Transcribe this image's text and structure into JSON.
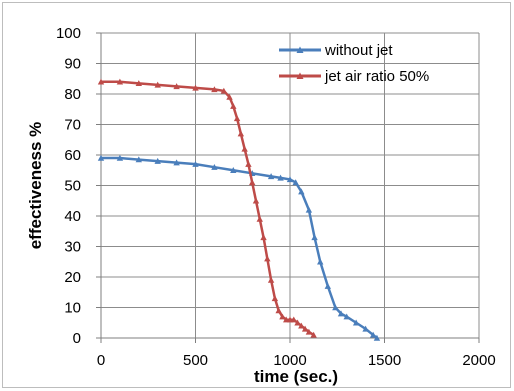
{
  "chart_data": {
    "type": "line",
    "xlabel": "time  (sec.)",
    "ylabel": "effectiveness %",
    "xlim": [
      0,
      2000
    ],
    "ylim": [
      0,
      100
    ],
    "xticks": [
      0,
      500,
      1000,
      1500,
      2000
    ],
    "yticks": [
      0,
      10,
      20,
      30,
      40,
      50,
      60,
      70,
      80,
      90,
      100
    ],
    "grid": true,
    "legend_position": "top-right",
    "series": [
      {
        "name": "without jet",
        "color": "#4a7ebb",
        "marker": "triangle",
        "x": [
          0,
          100,
          200,
          300,
          400,
          500,
          600,
          700,
          800,
          900,
          950,
          1000,
          1030,
          1060,
          1100,
          1130,
          1160,
          1200,
          1240,
          1270,
          1300,
          1350,
          1400,
          1440,
          1460
        ],
        "y": [
          59,
          59,
          58.5,
          58,
          57.5,
          57,
          56,
          55,
          54,
          53,
          52.5,
          52,
          51,
          48,
          42,
          33,
          25,
          17,
          10,
          8,
          7,
          5,
          3,
          1,
          0
        ]
      },
      {
        "name": "jet air ratio 50%",
        "color": "#be4b48",
        "marker": "triangle",
        "x": [
          0,
          100,
          200,
          300,
          400,
          500,
          600,
          650,
          680,
          700,
          720,
          740,
          760,
          780,
          800,
          820,
          840,
          860,
          880,
          900,
          920,
          940,
          960,
          980,
          1000,
          1020,
          1040,
          1060,
          1080,
          1100,
          1125
        ],
        "y": [
          84,
          84,
          83.5,
          83,
          82.5,
          82,
          81.5,
          81,
          79,
          76,
          72,
          67,
          62,
          57,
          51,
          45,
          39,
          33,
          26,
          19,
          13,
          9,
          7,
          6,
          6,
          6,
          5,
          4,
          3,
          2,
          1
        ]
      }
    ]
  }
}
